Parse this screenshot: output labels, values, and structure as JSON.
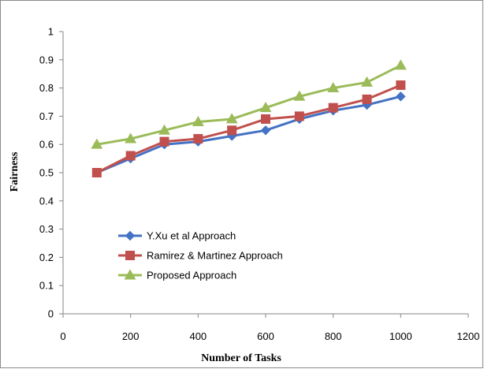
{
  "chart_data": {
    "type": "line",
    "title": "",
    "xlabel": "Number of Tasks",
    "ylabel": "Fairness",
    "xlim": [
      0,
      1200
    ],
    "ylim": [
      0,
      1
    ],
    "xticks": [
      "0",
      "200",
      "400",
      "600",
      "800",
      "1000",
      "1200"
    ],
    "yticks": [
      "0",
      "0.1",
      "0.2",
      "0.3",
      "0.4",
      "0.5",
      "0.6",
      "0.7",
      "0.8",
      "0.9",
      "1"
    ],
    "grid": false,
    "legend_position": "lower-left",
    "x": [
      100,
      200,
      300,
      400,
      500,
      600,
      700,
      800,
      900,
      1000
    ],
    "series": [
      {
        "name": "Y.Xu et al  Approach",
        "color": "#4472c4",
        "marker": "diamond",
        "values": [
          0.5,
          0.55,
          0.6,
          0.61,
          0.63,
          0.65,
          0.69,
          0.72,
          0.74,
          0.77
        ]
      },
      {
        "name": "Ramirez & Martinez Approach",
        "color": "#c0504d",
        "marker": "square",
        "values": [
          0.5,
          0.56,
          0.61,
          0.62,
          0.65,
          0.69,
          0.7,
          0.73,
          0.76,
          0.81
        ]
      },
      {
        "name": "Proposed Approach",
        "color": "#9bbb59",
        "marker": "triangle",
        "values": [
          0.6,
          0.62,
          0.65,
          0.68,
          0.69,
          0.73,
          0.77,
          0.8,
          0.82,
          0.88
        ]
      }
    ]
  }
}
